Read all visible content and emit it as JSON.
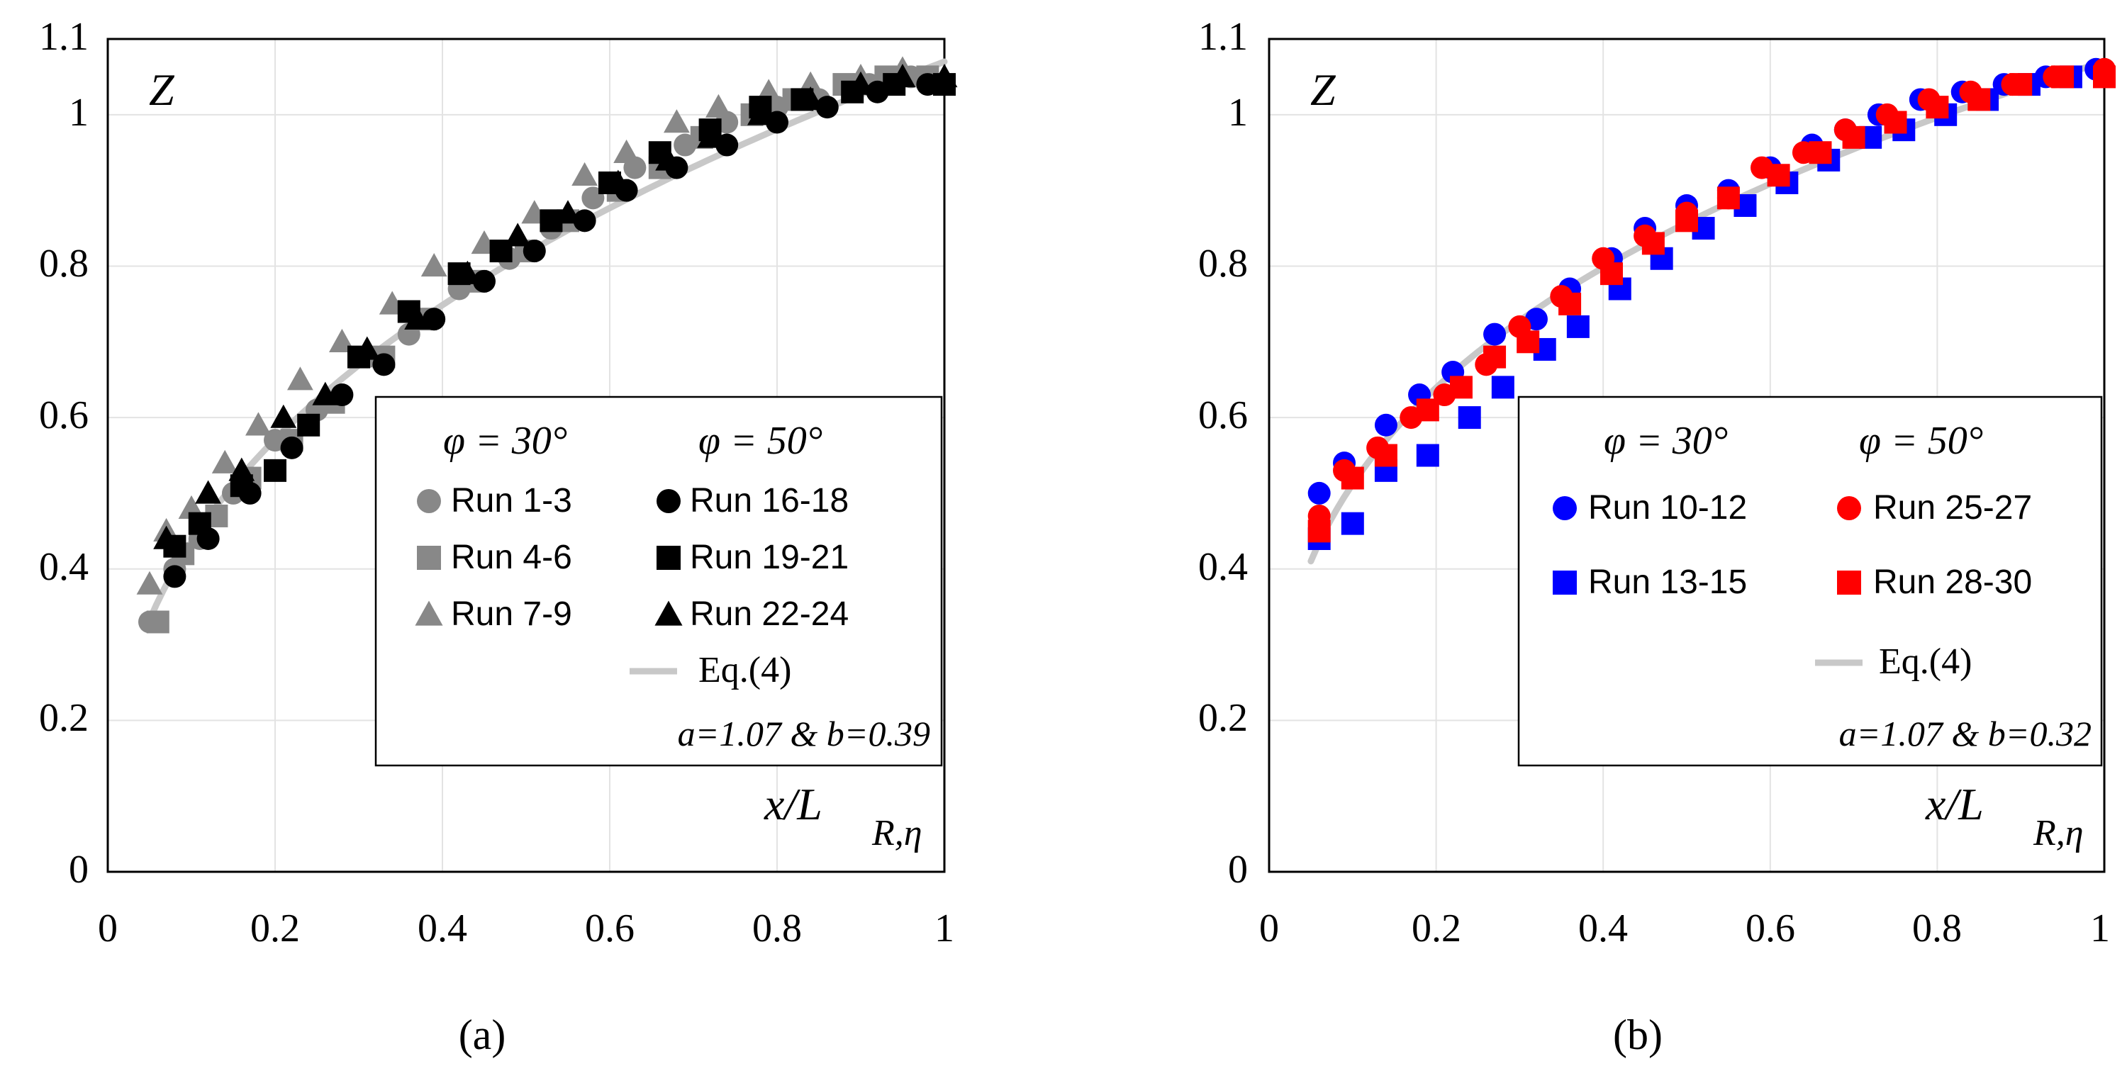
{
  "chart_data": [
    {
      "panel": "a",
      "caption": "(a)",
      "type": "scatter",
      "ylabel": "Z",
      "xlabel_main": "x/L",
      "xlabel_sub": "R,η",
      "xlim": [
        0,
        1
      ],
      "ylim": [
        0,
        1.1
      ],
      "xticks": [
        "0",
        "0.2",
        "0.4",
        "0.6",
        "0.8",
        "1"
      ],
      "yticks": [
        "0",
        "0.2",
        "0.4",
        "0.6",
        "0.8",
        "1",
        "1.1"
      ],
      "grid": true,
      "legend_placement": "bottom-right",
      "legend_headers": [
        "φ = 30°",
        "φ = 50°"
      ],
      "fit_label": "Eq.(4)",
      "fit_params_label": "a=1.07 & b=0.39",
      "fit": {
        "a": 1.07,
        "b": 0.39,
        "color": "#c8c8c8"
      },
      "series": [
        {
          "name": "Run 1-3",
          "marker": "circle",
          "color": "#888888",
          "x": [
            0.05,
            0.08,
            0.11,
            0.15,
            0.2,
            0.25,
            0.31,
            0.36,
            0.42,
            0.48,
            0.53,
            0.58,
            0.63,
            0.69,
            0.74,
            0.8,
            0.85,
            0.91,
            0.96
          ],
          "y": [
            0.33,
            0.4,
            0.44,
            0.5,
            0.57,
            0.61,
            0.68,
            0.71,
            0.77,
            0.81,
            0.85,
            0.89,
            0.93,
            0.96,
            0.99,
            1.01,
            1.02,
            1.04,
            1.05
          ]
        },
        {
          "name": "Run 4-6",
          "marker": "square",
          "color": "#888888",
          "x": [
            0.06,
            0.09,
            0.13,
            0.17,
            0.22,
            0.27,
            0.33,
            0.38,
            0.44,
            0.5,
            0.55,
            0.61,
            0.66,
            0.71,
            0.77,
            0.82,
            0.88,
            0.93,
            0.98
          ],
          "y": [
            0.33,
            0.42,
            0.47,
            0.52,
            0.57,
            0.62,
            0.68,
            0.73,
            0.78,
            0.82,
            0.86,
            0.9,
            0.93,
            0.97,
            1.0,
            1.02,
            1.04,
            1.05,
            1.05
          ]
        },
        {
          "name": "Run 7-9",
          "marker": "triangle",
          "color": "#888888",
          "x": [
            0.05,
            0.07,
            0.1,
            0.14,
            0.18,
            0.23,
            0.28,
            0.34,
            0.39,
            0.45,
            0.51,
            0.57,
            0.62,
            0.68,
            0.73,
            0.79,
            0.84,
            0.9,
            0.95
          ],
          "y": [
            0.38,
            0.45,
            0.48,
            0.54,
            0.59,
            0.65,
            0.7,
            0.75,
            0.8,
            0.83,
            0.87,
            0.92,
            0.95,
            0.99,
            1.01,
            1.03,
            1.04,
            1.05,
            1.06
          ]
        },
        {
          "name": "Run 16-18",
          "marker": "circle",
          "color": "#000000",
          "x": [
            0.08,
            0.12,
            0.17,
            0.22,
            0.28,
            0.33,
            0.39,
            0.45,
            0.51,
            0.57,
            0.62,
            0.68,
            0.74,
            0.8,
            0.86,
            0.92,
            0.98,
            1.0
          ],
          "y": [
            0.39,
            0.44,
            0.5,
            0.56,
            0.63,
            0.67,
            0.73,
            0.78,
            0.82,
            0.86,
            0.9,
            0.93,
            0.96,
            0.99,
            1.01,
            1.03,
            1.04,
            1.04
          ]
        },
        {
          "name": "Run 19-21",
          "marker": "square",
          "color": "#000000",
          "x": [
            0.08,
            0.11,
            0.16,
            0.2,
            0.24,
            0.3,
            0.36,
            0.42,
            0.47,
            0.53,
            0.6,
            0.66,
            0.72,
            0.78,
            0.83,
            0.89,
            0.94,
            1.0
          ],
          "y": [
            0.43,
            0.46,
            0.51,
            0.53,
            0.59,
            0.68,
            0.74,
            0.79,
            0.82,
            0.86,
            0.91,
            0.95,
            0.98,
            1.01,
            1.02,
            1.03,
            1.04,
            1.04
          ]
        },
        {
          "name": "Run 22-24",
          "marker": "triangle",
          "color": "#000000",
          "x": [
            0.07,
            0.12,
            0.16,
            0.21,
            0.26,
            0.31,
            0.37,
            0.43,
            0.49,
            0.55,
            0.61,
            0.67,
            0.72,
            0.78,
            0.84,
            0.9,
            0.95,
            1.0
          ],
          "y": [
            0.44,
            0.5,
            0.53,
            0.6,
            0.63,
            0.69,
            0.73,
            0.79,
            0.84,
            0.87,
            0.91,
            0.94,
            0.97,
            1.0,
            1.02,
            1.04,
            1.05,
            1.05
          ]
        }
      ]
    },
    {
      "panel": "b",
      "caption": "(b)",
      "type": "scatter",
      "ylabel": "Z",
      "xlabel_main": "x/L",
      "xlabel_sub": "R,η",
      "xlim": [
        0,
        1
      ],
      "ylim": [
        0,
        1.1
      ],
      "xticks": [
        "0",
        "0.2",
        "0.4",
        "0.6",
        "0.8",
        "1"
      ],
      "yticks": [
        "0",
        "0.2",
        "0.4",
        "0.6",
        "0.8",
        "1",
        "1.1"
      ],
      "grid": true,
      "legend_placement": "bottom-right",
      "legend_headers": [
        "φ = 30°",
        "φ = 50°"
      ],
      "fit_label": "Eq.(4)",
      "fit_params_label": "a=1.07 & b=0.32",
      "fit": {
        "a": 1.07,
        "b": 0.32,
        "color": "#c8c8c8"
      },
      "series": [
        {
          "name": "Run 10-12",
          "marker": "circle",
          "color": "#0000ff",
          "x": [
            0.06,
            0.09,
            0.14,
            0.18,
            0.22,
            0.27,
            0.32,
            0.36,
            0.41,
            0.45,
            0.5,
            0.55,
            0.6,
            0.65,
            0.69,
            0.73,
            0.78,
            0.83,
            0.88,
            0.93,
            0.99
          ],
          "y": [
            0.5,
            0.54,
            0.59,
            0.63,
            0.66,
            0.71,
            0.73,
            0.77,
            0.81,
            0.85,
            0.88,
            0.9,
            0.93,
            0.96,
            0.98,
            1.0,
            1.02,
            1.03,
            1.04,
            1.05,
            1.06
          ]
        },
        {
          "name": "Run 13-15",
          "marker": "square",
          "color": "#0000ff",
          "x": [
            0.06,
            0.1,
            0.14,
            0.19,
            0.24,
            0.28,
            0.33,
            0.37,
            0.42,
            0.47,
            0.52,
            0.57,
            0.62,
            0.67,
            0.72,
            0.76,
            0.81,
            0.86,
            0.91,
            0.96
          ],
          "y": [
            0.44,
            0.46,
            0.53,
            0.55,
            0.6,
            0.64,
            0.69,
            0.72,
            0.77,
            0.81,
            0.85,
            0.88,
            0.91,
            0.94,
            0.97,
            0.98,
            1.0,
            1.02,
            1.04,
            1.05
          ]
        },
        {
          "name": "Run 25-27",
          "marker": "circle",
          "color": "#ff0000",
          "x": [
            0.06,
            0.09,
            0.13,
            0.17,
            0.21,
            0.26,
            0.3,
            0.35,
            0.4,
            0.45,
            0.5,
            0.55,
            0.59,
            0.64,
            0.69,
            0.74,
            0.79,
            0.84,
            0.89,
            0.94,
            1.0
          ],
          "y": [
            0.47,
            0.53,
            0.56,
            0.6,
            0.63,
            0.67,
            0.72,
            0.76,
            0.81,
            0.84,
            0.87,
            0.89,
            0.93,
            0.95,
            0.98,
            1.0,
            1.02,
            1.03,
            1.04,
            1.05,
            1.06
          ]
        },
        {
          "name": "Run 28-30",
          "marker": "square",
          "color": "#ff0000",
          "x": [
            0.06,
            0.1,
            0.14,
            0.19,
            0.23,
            0.27,
            0.31,
            0.36,
            0.41,
            0.46,
            0.5,
            0.55,
            0.61,
            0.66,
            0.7,
            0.75,
            0.8,
            0.85,
            0.9,
            0.95,
            1.0
          ],
          "y": [
            0.45,
            0.52,
            0.55,
            0.61,
            0.64,
            0.68,
            0.7,
            0.75,
            0.79,
            0.83,
            0.86,
            0.89,
            0.92,
            0.95,
            0.97,
            0.99,
            1.01,
            1.02,
            1.04,
            1.05,
            1.05
          ]
        }
      ]
    }
  ]
}
